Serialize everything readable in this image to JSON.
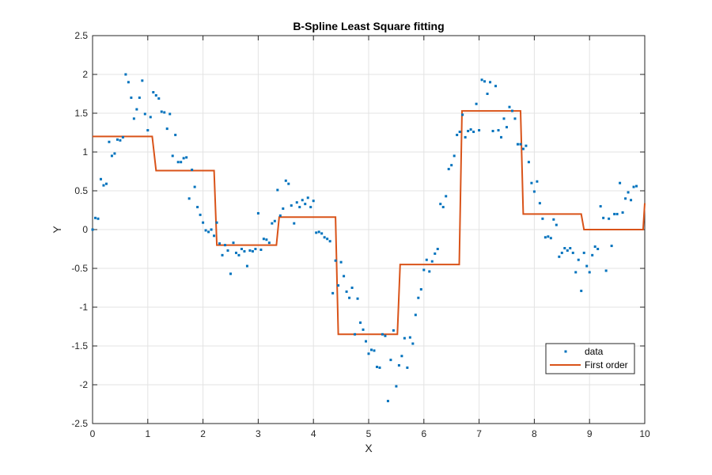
{
  "chart_data": {
    "type": "scatter",
    "title": "B-Spline Least Square fitting",
    "xlabel": "X",
    "ylabel": "Y",
    "xlim": [
      0,
      10
    ],
    "ylim": [
      -2.5,
      2.5
    ],
    "xticks": [
      "0",
      "1",
      "2",
      "3",
      "4",
      "5",
      "6",
      "7",
      "8",
      "9",
      "10"
    ],
    "yticks": [
      "2.5",
      "2",
      "1.5",
      "1",
      "0.5",
      "0",
      "-0.5",
      "-1",
      "-1.5",
      "-2",
      "-2.5"
    ],
    "grid": true,
    "legend_position": "bottom-right",
    "series": [
      {
        "name": "data",
        "kind": "markers",
        "color": "#0072BD",
        "points": [
          [
            0.0,
            0.0
          ],
          [
            0.05,
            0.15
          ],
          [
            0.1,
            0.14
          ],
          [
            0.15,
            0.65
          ],
          [
            0.2,
            0.57
          ],
          [
            0.25,
            0.59
          ],
          [
            0.3,
            1.13
          ],
          [
            0.35,
            0.95
          ],
          [
            0.4,
            0.98
          ],
          [
            0.45,
            1.16
          ],
          [
            0.5,
            1.15
          ],
          [
            0.55,
            1.19
          ],
          [
            0.6,
            2.0
          ],
          [
            0.65,
            1.9
          ],
          [
            0.7,
            1.7
          ],
          [
            0.75,
            1.43
          ],
          [
            0.8,
            1.55
          ],
          [
            0.85,
            1.7
          ],
          [
            0.9,
            1.92
          ],
          [
            0.95,
            1.49
          ],
          [
            1.0,
            1.28
          ],
          [
            1.05,
            1.45
          ],
          [
            1.1,
            1.77
          ],
          [
            1.15,
            1.73
          ],
          [
            1.2,
            1.69
          ],
          [
            1.25,
            1.52
          ],
          [
            1.3,
            1.51
          ],
          [
            1.35,
            1.3
          ],
          [
            1.4,
            1.49
          ],
          [
            1.45,
            0.95
          ],
          [
            1.5,
            1.22
          ],
          [
            1.55,
            0.87
          ],
          [
            1.6,
            0.87
          ],
          [
            1.65,
            0.92
          ],
          [
            1.7,
            0.93
          ],
          [
            1.75,
            0.4
          ],
          [
            1.8,
            0.77
          ],
          [
            1.85,
            0.55
          ],
          [
            1.9,
            0.29
          ],
          [
            1.95,
            0.19
          ],
          [
            2.0,
            0.09
          ],
          [
            2.05,
            -0.01
          ],
          [
            2.1,
            -0.03
          ],
          [
            2.15,
            0.0
          ],
          [
            2.2,
            -0.08
          ],
          [
            2.25,
            0.09
          ],
          [
            2.3,
            -0.18
          ],
          [
            2.35,
            -0.33
          ],
          [
            2.4,
            -0.2
          ],
          [
            2.45,
            -0.27
          ],
          [
            2.5,
            -0.57
          ],
          [
            2.55,
            -0.17
          ],
          [
            2.6,
            -0.3
          ],
          [
            2.65,
            -0.33
          ],
          [
            2.7,
            -0.25
          ],
          [
            2.75,
            -0.28
          ],
          [
            2.8,
            -0.47
          ],
          [
            2.85,
            -0.27
          ],
          [
            2.9,
            -0.28
          ],
          [
            2.95,
            -0.25
          ],
          [
            3.0,
            0.21
          ],
          [
            3.05,
            -0.26
          ],
          [
            3.1,
            -0.12
          ],
          [
            3.15,
            -0.13
          ],
          [
            3.2,
            -0.17
          ],
          [
            3.25,
            0.08
          ],
          [
            3.3,
            0.11
          ],
          [
            3.35,
            0.51
          ],
          [
            3.4,
            0.18
          ],
          [
            3.45,
            0.27
          ],
          [
            3.5,
            0.63
          ],
          [
            3.55,
            0.59
          ],
          [
            3.6,
            0.31
          ],
          [
            3.65,
            0.08
          ],
          [
            3.7,
            0.35
          ],
          [
            3.75,
            0.29
          ],
          [
            3.8,
            0.38
          ],
          [
            3.85,
            0.33
          ],
          [
            3.9,
            0.41
          ],
          [
            3.95,
            0.29
          ],
          [
            4.0,
            0.37
          ],
          [
            4.05,
            -0.04
          ],
          [
            4.1,
            -0.03
          ],
          [
            4.15,
            -0.05
          ],
          [
            4.2,
            -0.1
          ],
          [
            4.25,
            -0.12
          ],
          [
            4.3,
            -0.15
          ],
          [
            4.35,
            -0.82
          ],
          [
            4.4,
            -0.4
          ],
          [
            4.45,
            -0.72
          ],
          [
            4.5,
            -0.42
          ],
          [
            4.55,
            -0.6
          ],
          [
            4.6,
            -0.8
          ],
          [
            4.65,
            -0.88
          ],
          [
            4.7,
            -0.75
          ],
          [
            4.75,
            -1.35
          ],
          [
            4.8,
            -0.89
          ],
          [
            4.85,
            -1.2
          ],
          [
            4.9,
            -1.29
          ],
          [
            4.95,
            -1.44
          ],
          [
            5.0,
            -1.6
          ],
          [
            5.05,
            -1.55
          ],
          [
            5.1,
            -1.56
          ],
          [
            5.15,
            -1.77
          ],
          [
            5.2,
            -1.78
          ],
          [
            5.25,
            -1.35
          ],
          [
            5.3,
            -1.37
          ],
          [
            5.35,
            -2.21
          ],
          [
            5.4,
            -1.68
          ],
          [
            5.45,
            -1.3
          ],
          [
            5.5,
            -2.02
          ],
          [
            5.55,
            -1.75
          ],
          [
            5.6,
            -1.63
          ],
          [
            5.65,
            -1.4
          ],
          [
            5.7,
            -1.78
          ],
          [
            5.75,
            -1.39
          ],
          [
            5.8,
            -1.47
          ],
          [
            5.85,
            -1.1
          ],
          [
            5.9,
            -0.88
          ],
          [
            5.95,
            -0.77
          ],
          [
            6.0,
            -0.52
          ],
          [
            6.05,
            -0.39
          ],
          [
            6.1,
            -0.54
          ],
          [
            6.15,
            -0.41
          ],
          [
            6.2,
            -0.31
          ],
          [
            6.25,
            -0.25
          ],
          [
            6.3,
            0.33
          ],
          [
            6.35,
            0.29
          ],
          [
            6.4,
            0.43
          ],
          [
            6.45,
            0.78
          ],
          [
            6.5,
            0.83
          ],
          [
            6.55,
            0.95
          ],
          [
            6.6,
            1.22
          ],
          [
            6.65,
            1.26
          ],
          [
            6.7,
            1.48
          ],
          [
            6.75,
            1.19
          ],
          [
            6.8,
            1.27
          ],
          [
            6.85,
            1.29
          ],
          [
            6.9,
            1.26
          ],
          [
            6.95,
            1.62
          ],
          [
            7.0,
            1.28
          ],
          [
            7.05,
            1.93
          ],
          [
            7.1,
            1.91
          ],
          [
            7.15,
            1.75
          ],
          [
            7.2,
            1.9
          ],
          [
            7.25,
            1.27
          ],
          [
            7.3,
            1.85
          ],
          [
            7.35,
            1.28
          ],
          [
            7.4,
            1.19
          ],
          [
            7.45,
            1.43
          ],
          [
            7.5,
            1.32
          ],
          [
            7.55,
            1.58
          ],
          [
            7.6,
            1.53
          ],
          [
            7.65,
            1.43
          ],
          [
            7.7,
            1.1
          ],
          [
            7.75,
            1.1
          ],
          [
            7.8,
            1.04
          ],
          [
            7.85,
            1.08
          ],
          [
            7.9,
            0.87
          ],
          [
            7.95,
            0.6
          ],
          [
            8.0,
            0.49
          ],
          [
            8.05,
            0.62
          ],
          [
            8.1,
            0.34
          ],
          [
            8.15,
            0.14
          ],
          [
            8.2,
            -0.1
          ],
          [
            8.25,
            -0.09
          ],
          [
            8.3,
            -0.11
          ],
          [
            8.35,
            0.13
          ],
          [
            8.4,
            0.06
          ],
          [
            8.45,
            -0.35
          ],
          [
            8.5,
            -0.3
          ],
          [
            8.55,
            -0.24
          ],
          [
            8.6,
            -0.27
          ],
          [
            8.65,
            -0.24
          ],
          [
            8.7,
            -0.3
          ],
          [
            8.75,
            -0.55
          ],
          [
            8.8,
            -0.39
          ],
          [
            8.85,
            -0.79
          ],
          [
            8.9,
            -0.3
          ],
          [
            8.95,
            -0.47
          ],
          [
            9.0,
            -0.55
          ],
          [
            9.05,
            -0.33
          ],
          [
            9.1,
            -0.22
          ],
          [
            9.15,
            -0.25
          ],
          [
            9.2,
            0.3
          ],
          [
            9.25,
            0.15
          ],
          [
            9.3,
            -0.53
          ],
          [
            9.35,
            0.14
          ],
          [
            9.4,
            -0.21
          ],
          [
            9.45,
            0.2
          ],
          [
            9.5,
            0.2
          ],
          [
            9.55,
            0.6
          ],
          [
            9.6,
            0.22
          ],
          [
            9.65,
            0.4
          ],
          [
            9.7,
            0.48
          ],
          [
            9.75,
            0.38
          ],
          [
            9.8,
            0.55
          ],
          [
            9.85,
            0.56
          ]
        ]
      },
      {
        "name": "First order",
        "kind": "line",
        "color": "#D95319",
        "points": [
          [
            0.0,
            1.2
          ],
          [
            1.08,
            1.2
          ],
          [
            1.15,
            0.76
          ],
          [
            2.2,
            0.76
          ],
          [
            2.25,
            -0.2
          ],
          [
            3.33,
            -0.2
          ],
          [
            3.38,
            0.16
          ],
          [
            4.4,
            0.16
          ],
          [
            4.45,
            -1.35
          ],
          [
            5.52,
            -1.35
          ],
          [
            5.57,
            -0.45
          ],
          [
            6.64,
            -0.45
          ],
          [
            6.69,
            1.53
          ],
          [
            7.75,
            1.53
          ],
          [
            7.8,
            0.2
          ],
          [
            8.85,
            0.2
          ],
          [
            8.9,
            0.0
          ],
          [
            9.97,
            0.0
          ],
          [
            10.0,
            0.34
          ]
        ]
      }
    ]
  }
}
